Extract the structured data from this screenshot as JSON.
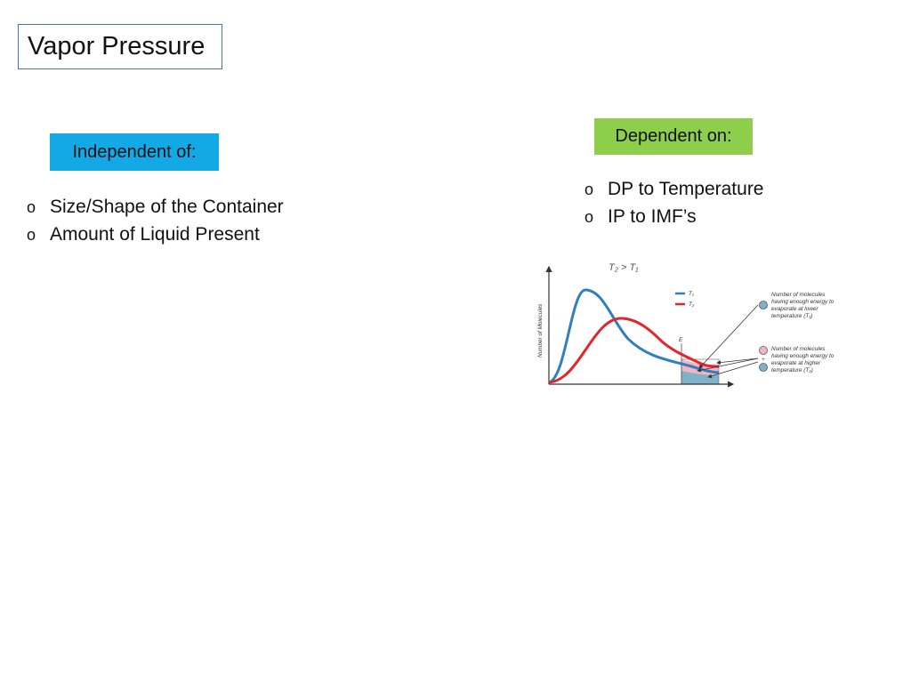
{
  "title": "Vapor Pressure",
  "independent": {
    "label": "Independent of:",
    "items": [
      "Size/Shape of the Container",
      "Amount of Liquid Present"
    ]
  },
  "dependent": {
    "label": "Dependent on:",
    "items": [
      "DP to Temperature",
      "IP to IMF’s"
    ]
  },
  "bullet_marker": "o",
  "figure": {
    "heading": "T₂ > T₁",
    "ylabel": "Number of Molecules",
    "energy_label": "E",
    "legend": [
      {
        "name": "T₁",
        "color": "#2f7fc1"
      },
      {
        "name": "T₂",
        "color": "#e3242b"
      }
    ],
    "note_lower": [
      "Number of molecules",
      "having enough energy to",
      "evaporate at lower",
      "temperature (T₁)"
    ],
    "note_higher": [
      "Number of molecules",
      "having enough energy to",
      "evaporate at higher",
      "temperature (T₂)"
    ],
    "plus_sign": "+",
    "colors": {
      "t1_curve": "#2f7fc1",
      "t2_curve": "#e3242b",
      "t1_area": "#7fb1c9",
      "t2_area": "#f3b6c0",
      "title_border": "#4a72c4",
      "independent_bg": "#12a9e6",
      "dependent_bg": "#8dce4a"
    }
  }
}
